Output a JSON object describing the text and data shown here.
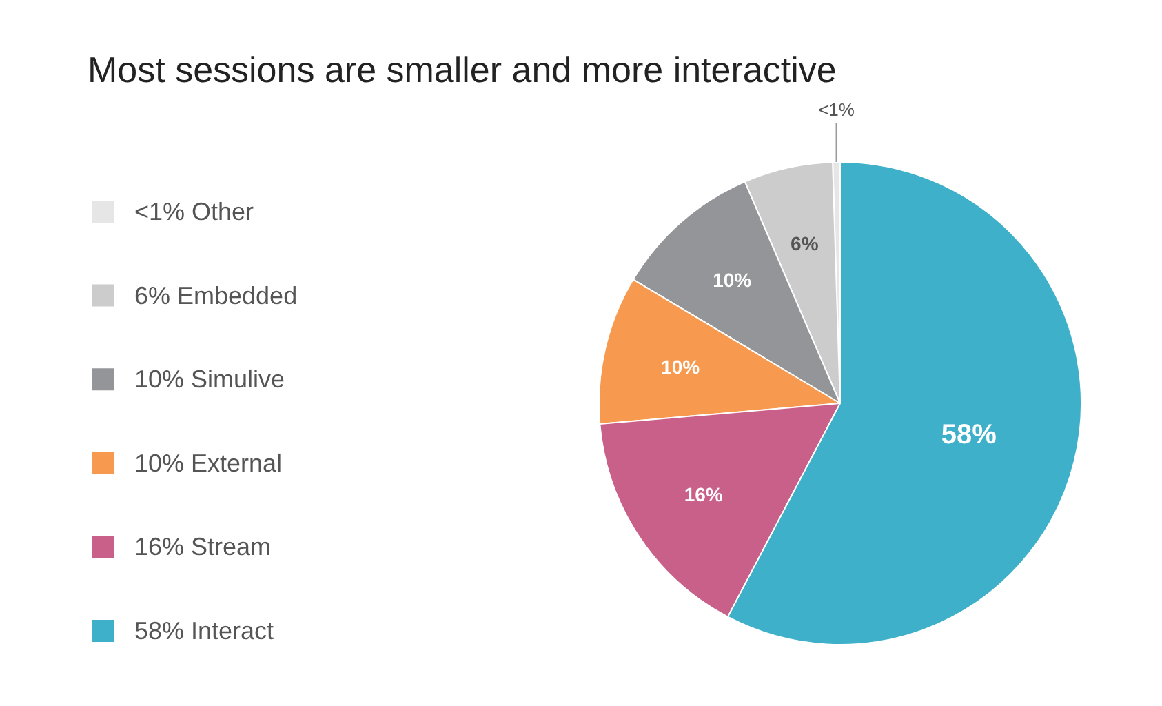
{
  "chart_data": {
    "type": "pie",
    "title": "Most sessions are smaller and more interactive",
    "categories": [
      "Other",
      "Embedded",
      "Simulive",
      "External",
      "Stream",
      "Interact"
    ],
    "values": [
      0.5,
      6,
      10,
      10,
      16,
      58
    ],
    "value_labels": [
      "<1%",
      "6%",
      "10%",
      "10%",
      "16%",
      "58%"
    ],
    "colors": [
      "#e6e6e6",
      "#cccccc",
      "#939598",
      "#f79a4f",
      "#c9608a",
      "#3fb0c9"
    ],
    "legend": "left"
  }
}
